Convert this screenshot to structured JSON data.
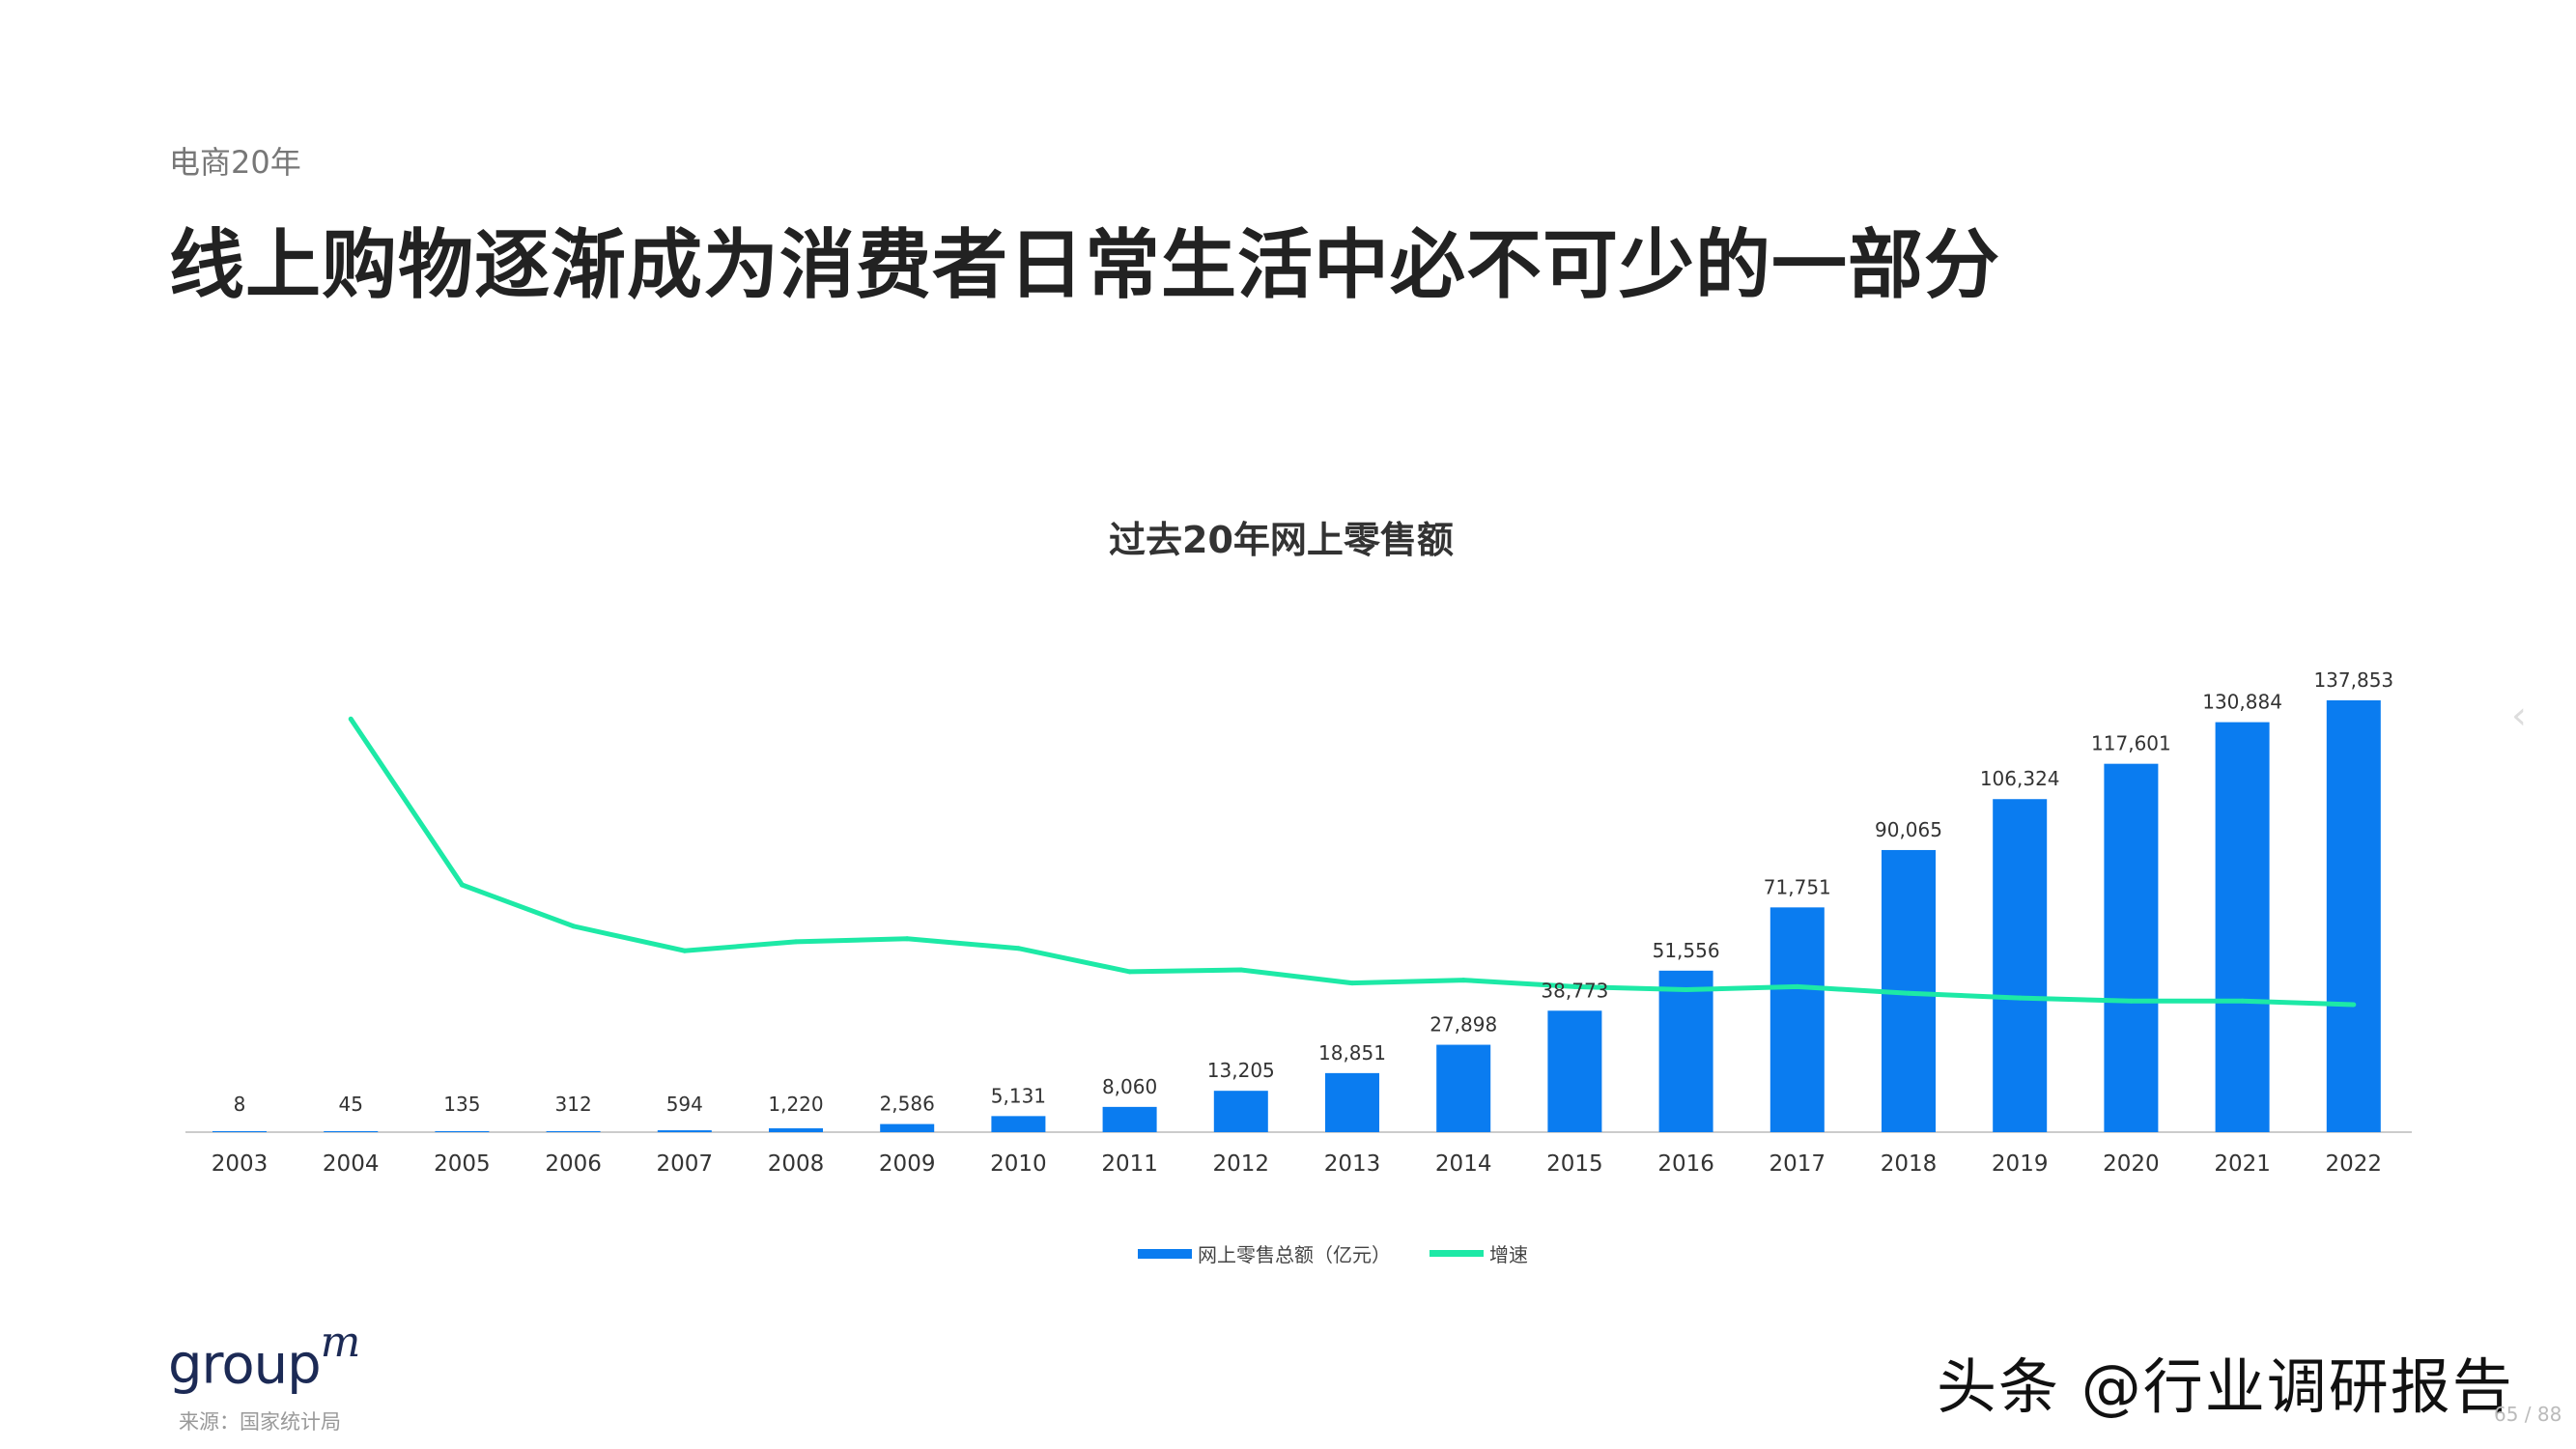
{
  "header": {
    "section": "电商20年",
    "title": "线上购物逐渐成为消费者日常生活中必不可少的一部分"
  },
  "chart_data": {
    "type": "bar+line",
    "title": "过去20年网上零售额",
    "categories": [
      "2003",
      "2004",
      "2005",
      "2006",
      "2007",
      "2008",
      "2009",
      "2010",
      "2011",
      "2012",
      "2013",
      "2014",
      "2015",
      "2016",
      "2017",
      "2018",
      "2019",
      "2020",
      "2021",
      "2022"
    ],
    "series": [
      {
        "name": "网上零售总额（亿元）",
        "type": "bar",
        "color": "#0a7cf0",
        "values": [
          8,
          45,
          135,
          312,
          594,
          1220,
          2586,
          5131,
          8060,
          13205,
          18851,
          27898,
          38773,
          51556,
          71751,
          90065,
          106324,
          117601,
          130884,
          137853
        ],
        "labels": [
          "8",
          "45",
          "135",
          "312",
          "594",
          "1,220",
          "2,586",
          "5,131",
          "8,060",
          "13,205",
          "18,851",
          "27,898",
          "38,773",
          "51,556",
          "71,751",
          "90,065",
          "106,324",
          "117,601",
          "130,884",
          "137,853"
        ]
      },
      {
        "name": "增速",
        "type": "line",
        "color": "#1de9a6",
        "values": [
          null,
          477,
          200,
          131,
          90,
          105,
          110,
          94,
          55,
          58,
          36,
          41,
          30,
          25,
          30,
          19,
          11,
          6,
          6,
          0
        ]
      }
    ],
    "grid": false,
    "legend": "bottom"
  },
  "legend": {
    "bar": "网上零售总额（亿元）",
    "line": "增速"
  },
  "footer": {
    "logo": "group",
    "logo_sup": "m",
    "source": "来源：国家统计局",
    "watermark": "头条 @行业调研报告",
    "page": "65 / 88"
  }
}
